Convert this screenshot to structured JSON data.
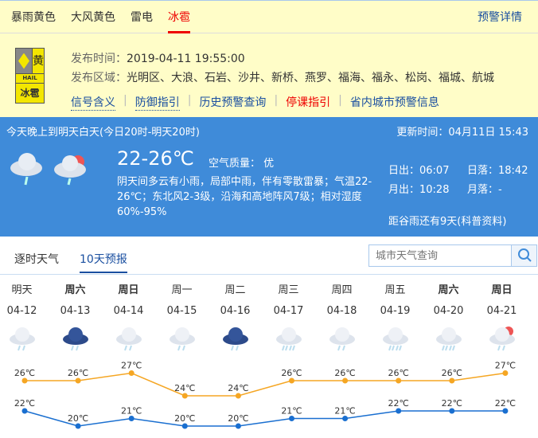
{
  "warning": {
    "tabs": [
      "暴雨黄色",
      "大风黄色",
      "雷电",
      "冰雹"
    ],
    "active_tab": 3,
    "detail_link": "预警详情",
    "badge": {
      "level": "黄",
      "en": "HAIL",
      "cn": "冰雹"
    },
    "publish_time_label": "发布时间：",
    "publish_time": "2019-04-11 19:55:00",
    "area_label": "发布区域：",
    "area": "光明区、大浪、石岩、沙井、新桥、燕罗、福海、福永、松岗、福城、航城",
    "links": [
      "信号含义",
      "防御指引",
      "历史预警查询",
      "停课指引",
      "省内城市预警信息"
    ]
  },
  "today": {
    "period": "今天晚上到明天白天(今日20时-明天20时)",
    "update": "更新时间：04月11日 15:43",
    "temp": "22-26℃",
    "aqi": "空气质量： 优",
    "desc": "阴天间多云有小雨，局部中雨，伴有零散雷暴；气温22-26℃；东北风2-3级，沿海和高地阵风7级；相对湿度60%-95%",
    "sunrise": "日出：06:07",
    "sunset": "日落：18:42",
    "moonrise": "月出：10:28",
    "moonset": "月落：-",
    "solar_term": "距谷雨还有9天(科普资料)"
  },
  "tabs": [
    "逐时天气",
    "10天预报"
  ],
  "search": {
    "placeholder": "城市天气查询"
  },
  "forecast": [
    {
      "day": "明天",
      "date": "04-12",
      "bold": false,
      "icon": "light-rain",
      "high": 26,
      "low": 22
    },
    {
      "day": "周六",
      "date": "04-13",
      "bold": true,
      "icon": "thunder-rain",
      "high": 26,
      "low": 20
    },
    {
      "day": "周日",
      "date": "04-14",
      "bold": true,
      "icon": "light-rain",
      "high": 27,
      "low": 21
    },
    {
      "day": "周一",
      "date": "04-15",
      "bold": false,
      "icon": "light-rain",
      "high": 24,
      "low": 20
    },
    {
      "day": "周二",
      "date": "04-16",
      "bold": false,
      "icon": "thunder-rain",
      "high": 24,
      "low": 20
    },
    {
      "day": "周三",
      "date": "04-17",
      "bold": false,
      "icon": "heavy-rain",
      "high": 26,
      "low": 21
    },
    {
      "day": "周四",
      "date": "04-18",
      "bold": false,
      "icon": "light-rain",
      "high": 26,
      "low": 21
    },
    {
      "day": "周五",
      "date": "04-19",
      "bold": false,
      "icon": "heavy-rain",
      "high": 26,
      "low": 22
    },
    {
      "day": "周六",
      "date": "04-20",
      "bold": true,
      "icon": "heavy-rain",
      "high": 26,
      "low": 22
    },
    {
      "day": "周日",
      "date": "04-21",
      "bold": true,
      "icon": "sun-cloud-rain",
      "high": 27,
      "low": 22
    }
  ],
  "colors": {
    "high": "#f5a623",
    "low": "#1a6fd0",
    "banner": "#3f8bd9",
    "warn_bg": "#fffdc8"
  }
}
